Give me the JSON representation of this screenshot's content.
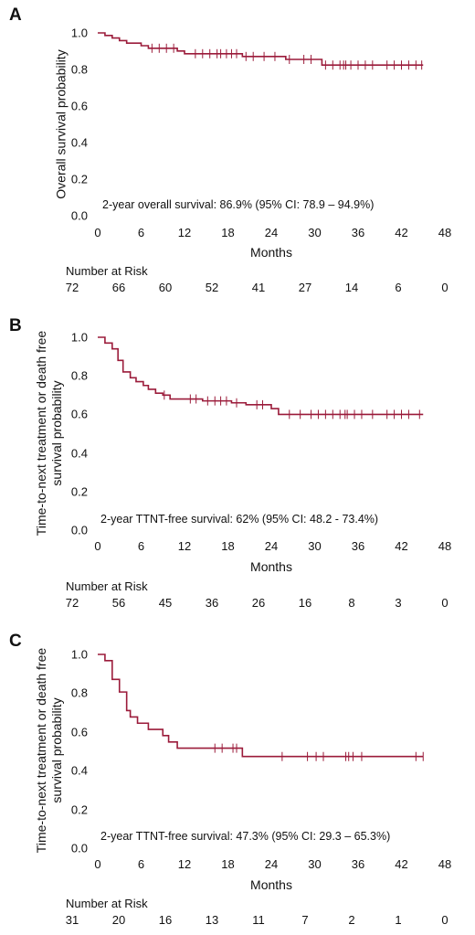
{
  "chart_data": [
    {
      "panel_letter": "A",
      "type": "line",
      "ylabel": "Overall survival probability",
      "xlabel": "Months",
      "xlim": [
        0,
        48
      ],
      "ylim": [
        0,
        1
      ],
      "xticks": [
        "0",
        "6",
        "12",
        "18",
        "24",
        "30",
        "36",
        "42",
        "48"
      ],
      "yticks": [
        "0.0",
        "0.2",
        "0.4",
        "0.6",
        "0.8",
        "1.0"
      ],
      "annotation": "2-year overall survival: 86.9% (95% CI: 78.9 – 94.9%)",
      "curve_color": "#9b1b3a",
      "steps": [
        [
          0,
          1.0
        ],
        [
          1,
          0.986
        ],
        [
          2,
          0.972
        ],
        [
          3,
          0.958
        ],
        [
          4,
          0.944
        ],
        [
          6,
          0.93
        ],
        [
          7,
          0.916
        ],
        [
          11,
          0.901
        ],
        [
          12,
          0.886
        ],
        [
          20,
          0.871
        ],
        [
          26,
          0.855
        ],
        [
          31,
          0.824
        ],
        [
          45,
          0.824
        ]
      ],
      "censor_times": [
        7.5,
        8.5,
        9.5,
        10.5,
        13.5,
        14.5,
        15.5,
        16.5,
        17,
        17.8,
        18.5,
        19.2,
        20.5,
        21.5,
        23,
        24.5,
        26.5,
        28.5,
        29.5,
        31.5,
        32.5,
        33.5,
        34,
        34.3,
        35,
        36,
        37,
        38,
        40,
        41,
        42,
        43,
        44,
        44.8
      ],
      "risk_title": "Number at Risk",
      "risk_numbers": [
        "72",
        "66",
        "60",
        "52",
        "41",
        "27",
        "14",
        "6",
        "0"
      ]
    },
    {
      "panel_letter": "B",
      "type": "line",
      "ylabel": "Time-to-next treatment or death free survival probability",
      "xlabel": "Months",
      "xlim": [
        0,
        48
      ],
      "ylim": [
        0,
        1
      ],
      "xticks": [
        "0",
        "6",
        "12",
        "18",
        "24",
        "30",
        "36",
        "42",
        "48"
      ],
      "yticks": [
        "0.0",
        "0.2",
        "0.4",
        "0.6",
        "0.8",
        "1.0"
      ],
      "annotation": "2-year TTNT-free survival: 62% (95% CI: 48.2 - 73.4%)",
      "curve_color": "#9b1b3a",
      "steps": [
        [
          0,
          1.0
        ],
        [
          1,
          0.97
        ],
        [
          2,
          0.94
        ],
        [
          2.8,
          0.88
        ],
        [
          3.5,
          0.82
        ],
        [
          4.5,
          0.79
        ],
        [
          5.3,
          0.77
        ],
        [
          6.3,
          0.75
        ],
        [
          7,
          0.73
        ],
        [
          8,
          0.71
        ],
        [
          9,
          0.7
        ],
        [
          10,
          0.68
        ],
        [
          14.5,
          0.67
        ],
        [
          18.5,
          0.66
        ],
        [
          20.5,
          0.65
        ],
        [
          24,
          0.63
        ],
        [
          25,
          0.6
        ],
        [
          45,
          0.6
        ]
      ],
      "censor_times": [
        9.2,
        12.8,
        13.6,
        15.2,
        16.2,
        17,
        17.8,
        19.2,
        22,
        22.8,
        26.5,
        28,
        29.5,
        30.5,
        31.5,
        32.5,
        33.5,
        34.2,
        34.5,
        35.5,
        36.5,
        38,
        40,
        41,
        42,
        43,
        44.5
      ],
      "risk_title": "Number at Risk",
      "risk_numbers": [
        "72",
        "56",
        "45",
        "36",
        "26",
        "16",
        "8",
        "3",
        "0"
      ]
    },
    {
      "panel_letter": "C",
      "type": "line",
      "ylabel": "Time-to-next treatment or death free survival probability",
      "xlabel": "Months",
      "xlim": [
        0,
        48
      ],
      "ylim": [
        0,
        1
      ],
      "xticks": [
        "0",
        "6",
        "12",
        "18",
        "24",
        "30",
        "36",
        "42",
        "48"
      ],
      "yticks": [
        "0.0",
        "0.2",
        "0.4",
        "0.6",
        "0.8",
        "1.0"
      ],
      "annotation": "2-year TTNT-free survival: 47.3% (95% CI: 29.3 – 65.3%)",
      "curve_color": "#9b1b3a",
      "steps": [
        [
          0,
          1.0
        ],
        [
          1,
          0.968
        ],
        [
          2,
          0.871
        ],
        [
          3,
          0.806
        ],
        [
          4,
          0.71
        ],
        [
          4.5,
          0.677
        ],
        [
          5.5,
          0.645
        ],
        [
          7,
          0.613
        ],
        [
          9,
          0.581
        ],
        [
          9.8,
          0.548
        ],
        [
          11,
          0.516
        ],
        [
          20,
          0.473
        ],
        [
          45,
          0.473
        ]
      ],
      "censor_times": [
        16.2,
        17.2,
        18.7,
        19.2,
        25.5,
        29,
        30.2,
        31.2,
        34.3,
        34.7,
        35.3,
        36.5,
        44,
        45
      ],
      "risk_title": "Number at Risk",
      "risk_numbers": [
        "31",
        "20",
        "16",
        "13",
        "11",
        "7",
        "2",
        "1",
        "0"
      ]
    }
  ]
}
